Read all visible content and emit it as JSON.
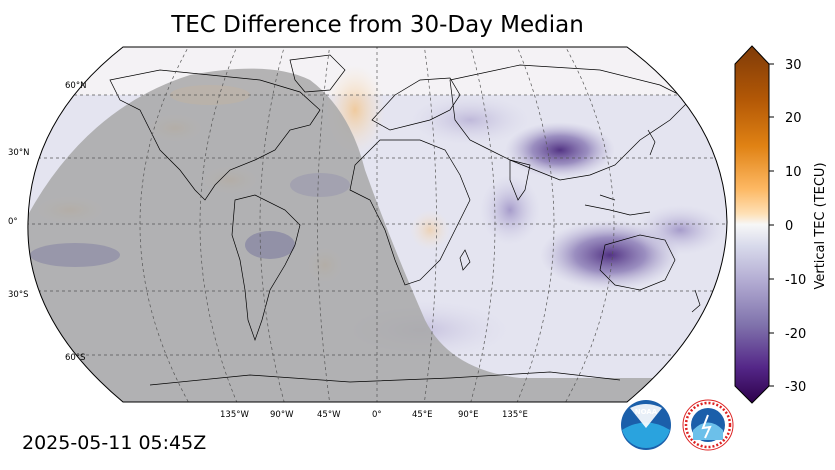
{
  "title": "TEC Difference from 30-Day Median",
  "timestamp": "2025-05-11 05:45Z",
  "latitude_labels": [
    "60°N",
    "30°N",
    "0°",
    "30°S",
    "60°S"
  ],
  "longitude_labels": [
    "135°W",
    "90°W",
    "45°W",
    "0°",
    "45°E",
    "90°E",
    "135°E"
  ],
  "colorbar": {
    "label": "Vertical TEC (TECU)",
    "ticks": [
      "30",
      "20",
      "10",
      "0",
      "-10",
      "-20",
      "-30"
    ],
    "range": [
      -30,
      30
    ],
    "colors": {
      "max": "#7f3b08",
      "mid_high": "#e08214",
      "low_high": "#fdd9a7",
      "zero": "#f7f7f7",
      "low_neg": "#d0d1e6",
      "mid_neg": "#8073ac",
      "min": "#2d004b"
    }
  },
  "night_shade_color": "#a8a8a8",
  "logos": {
    "noaa": "NOAA",
    "nws": "NATIONAL WEATHER SERVICE"
  }
}
